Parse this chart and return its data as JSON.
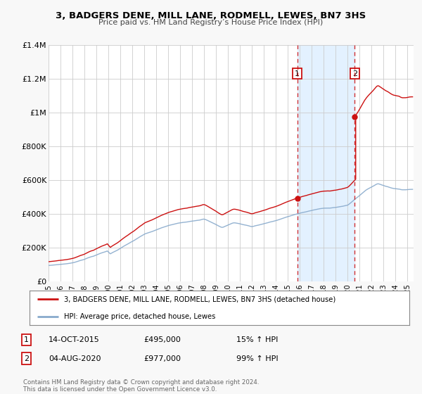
{
  "title": "3, BADGERS DENE, MILL LANE, RODMELL, LEWES, BN7 3HS",
  "subtitle": "Price paid vs. HM Land Registry’s House Price Index (HPI)",
  "xlim": [
    1995,
    2025.5
  ],
  "ylim": [
    0,
    1400000
  ],
  "yticks": [
    0,
    200000,
    400000,
    600000,
    800000,
    1000000,
    1200000,
    1400000
  ],
  "ytick_labels": [
    "£0",
    "£200K",
    "£400K",
    "£600K",
    "£800K",
    "£1M",
    "£1.2M",
    "£1.4M"
  ],
  "xticks": [
    1995,
    1996,
    1997,
    1998,
    1999,
    2000,
    2001,
    2002,
    2003,
    2004,
    2005,
    2006,
    2007,
    2008,
    2009,
    2010,
    2011,
    2012,
    2013,
    2014,
    2015,
    2016,
    2017,
    2018,
    2019,
    2020,
    2021,
    2022,
    2023,
    2024,
    2025
  ],
  "background_color": "#f8f8f8",
  "plot_bg_color": "#ffffff",
  "grid_color": "#cccccc",
  "hpi_color": "#88aacc",
  "price_color": "#cc1111",
  "purchase1_x": 2015.79,
  "purchase1_y": 495000,
  "purchase2_x": 2020.59,
  "purchase2_y": 977000,
  "vline1_x": 2015.79,
  "vline2_x": 2020.59,
  "shade_color": "#ddeeff",
  "legend_label1": "3, BADGERS DENE, MILL LANE, RODMELL, LEWES, BN7 3HS (detached house)",
  "legend_label2": "HPI: Average price, detached house, Lewes",
  "ann1_date": "14-OCT-2015",
  "ann1_price": "£495,000",
  "ann1_hpi": "15% ↑ HPI",
  "ann2_date": "04-AUG-2020",
  "ann2_price": "£977,000",
  "ann2_hpi": "99% ↑ HPI",
  "footer1": "Contains HM Land Registry data © Crown copyright and database right 2024.",
  "footer2": "This data is licensed under the Open Government Licence v3.0."
}
